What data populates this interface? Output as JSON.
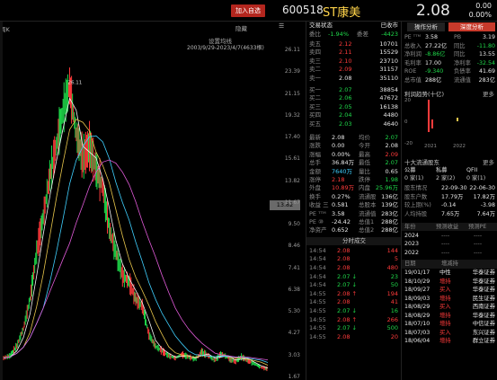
{
  "header": {
    "add_button": "加入自选",
    "code": "600518",
    "name": "ST康美",
    "price": "2.08",
    "change": "0.00",
    "change_pct": "0.00%"
  },
  "chart_tabs": {
    "period": "周K",
    "indicator": "设置均线",
    "range": "2003/9/29-2023/4/7(4633根)",
    "hide": "隐藏"
  },
  "price_axis": [
    "26.11",
    "23.39",
    "21.15",
    "19.32",
    "17.40",
    "15.61",
    "13.82",
    "11.67",
    "9.50",
    "8.46",
    "7.41",
    "6.38",
    "5.30",
    "4.27",
    "3.03",
    "1.67"
  ],
  "peak_label": "26.11",
  "chart_data": {
    "type": "line",
    "title": "",
    "xlabel": "",
    "ylabel": "",
    "ylim": [
      1.67,
      26.11
    ],
    "grid": false,
    "series": [
      {
        "name": "",
        "values": [
          3.0,
          3.2,
          4.0,
          5.5,
          8.0,
          12.0,
          15.0,
          18.5,
          21.0,
          24.0,
          26.11,
          22.0,
          20.0,
          21.0,
          19.0,
          17.5,
          14.0,
          12.0,
          10.0,
          9.5,
          8.0,
          7.4,
          5.0,
          4.0,
          3.6,
          3.2,
          3.0,
          3.3,
          3.1,
          2.9,
          3.5,
          3.2,
          2.8,
          3.4,
          3.0,
          2.7,
          3.1,
          2.8,
          2.5,
          2.2,
          2.08
        ]
      }
    ]
  },
  "ob": {
    "title": "交易状态",
    "status": "已收市",
    "weibi": "委比",
    "weibi_val": "-1.94%",
    "weicha": "委差",
    "weicha_val": "-4423",
    "asks": [
      {
        "l": "卖五",
        "p": "2.12",
        "v": "10701"
      },
      {
        "l": "卖四",
        "p": "2.11",
        "v": "15529"
      },
      {
        "l": "卖三",
        "p": "2.10",
        "v": "23710"
      },
      {
        "l": "卖二",
        "p": "2.09",
        "v": "31157"
      },
      {
        "l": "卖一",
        "p": "2.08",
        "v": "35110"
      }
    ],
    "bids": [
      {
        "l": "买一",
        "p": "2.07",
        "v": "38854"
      },
      {
        "l": "买二",
        "p": "2.06",
        "v": "47672"
      },
      {
        "l": "买三",
        "p": "2.05",
        "v": "16138"
      },
      {
        "l": "买四",
        "p": "2.04",
        "v": "4480"
      },
      {
        "l": "买五",
        "p": "2.03",
        "v": "4640"
      }
    ],
    "stats": [
      {
        "a": "最新",
        "b": "2.08",
        "c": "均价",
        "d": "2.07",
        "bc": "white",
        "dc": "green"
      },
      {
        "a": "涨跌",
        "b": "0.00",
        "c": "今开",
        "d": "2.08",
        "bc": "white",
        "dc": "white"
      },
      {
        "a": "涨幅",
        "b": "0.00%",
        "c": "最高",
        "d": "2.09",
        "bc": "white",
        "dc": "red"
      },
      {
        "a": "总手",
        "b": "36.84万",
        "c": "最低",
        "d": "2.07",
        "bc": "white",
        "dc": "green"
      },
      {
        "a": "金额",
        "b": "7640万",
        "c": "量比",
        "d": "0.65",
        "bc": "cyan",
        "dc": "white"
      },
      {
        "a": "涨停",
        "b": "2.18",
        "c": "跌停",
        "d": "1.98",
        "bc": "red",
        "dc": "green"
      },
      {
        "a": "外盘",
        "b": "10.89万",
        "c": "内盘",
        "d": "25.96万",
        "bc": "red",
        "dc": "green"
      },
      {
        "a": "换手",
        "b": "0.27%",
        "c": "流通股",
        "d": "136亿",
        "bc": "white",
        "dc": "white"
      },
      {
        "a": "收益 三",
        "b": "0.581",
        "c": "总股本",
        "d": "139亿",
        "bc": "white",
        "dc": "white"
      },
      {
        "a": "PE ᵀᵀᴹ",
        "b": "3.58",
        "c": "流通值",
        "d": "283亿",
        "bc": "white",
        "dc": "white"
      },
      {
        "a": "PE ⑩",
        "b": "-24.42",
        "c": "总值1",
        "d": "288亿",
        "bc": "white",
        "dc": "white"
      },
      {
        "a": "净资产",
        "b": "0.652",
        "c": "总值2",
        "d": "288亿",
        "bc": "white",
        "dc": "white"
      }
    ],
    "ticks_title": "分时成交",
    "ticks": [
      {
        "t": "14:54",
        "p": "2.08",
        "v": "144",
        "vc": "red"
      },
      {
        "t": "14:54",
        "p": "2.08",
        "v": "5",
        "vc": "red"
      },
      {
        "t": "14:54",
        "p": "2.08",
        "v": "480",
        "vc": "red"
      },
      {
        "t": "14:54",
        "p": "2.07 ↓",
        "v": "23",
        "vc": "green"
      },
      {
        "t": "14:54",
        "p": "2.07 ↓",
        "v": "50",
        "vc": "green"
      },
      {
        "t": "14:55",
        "p": "2.08 ↑",
        "v": "194",
        "vc": "red"
      },
      {
        "t": "14:55",
        "p": "2.08",
        "v": "41",
        "vc": "red"
      },
      {
        "t": "14:55",
        "p": "2.07 ↓",
        "v": "16",
        "vc": "green"
      },
      {
        "t": "14:55",
        "p": "2.08 ↑",
        "v": "266",
        "vc": "red"
      },
      {
        "t": "14:55",
        "p": "2.07 ↓",
        "v": "500",
        "vc": "green"
      },
      {
        "t": "14:55",
        "p": "2.08",
        "v": "20",
        "vc": "red"
      }
    ]
  },
  "rp": {
    "tab1": "操作分析",
    "tab2": "深度分析",
    "fund": [
      {
        "a": "PE ᵀᵀᴹ",
        "b": "3.58",
        "c": "PB",
        "d": "3.19"
      },
      {
        "a": "总收入",
        "b": "27.22亿",
        "c": "同比",
        "d": "-11.80",
        "dc": "green"
      },
      {
        "a": "净利润",
        "b": "-8.86亿",
        "c": "同比",
        "d": "13.55",
        "bc": "green"
      },
      {
        "a": "毛利率",
        "b": "17.00",
        "c": "净利率",
        "d": "-32.54",
        "dc": "green"
      },
      {
        "a": "ROE",
        "b": "-9.340",
        "c": "负债率",
        "d": "41.69",
        "bc": "green"
      },
      {
        "a": "总市值",
        "b": "288亿",
        "c": "流通值",
        "d": "283亿"
      }
    ],
    "profit_title": "利润趋势(十亿)",
    "more": "更多",
    "profit_axis": [
      "20",
      "0",
      "-20"
    ],
    "profit_years": [
      "2021",
      "2022"
    ],
    "shareholder_title": "十大流通股东",
    "sh_pills": [
      "公募",
      "私募",
      "QFII"
    ],
    "sh_counts": [
      "0 家(1)",
      "2 家(2)",
      "0 家(1)"
    ],
    "sh_rows": [
      {
        "a": "股东情况",
        "b": "22-09-30",
        "c": "22-06-30"
      },
      {
        "a": "股东户数",
        "b": "17.79万",
        "c": "17.82万"
      },
      {
        "a": "较上期(%)",
        "b": "-0.14",
        "c": "-3.98"
      },
      {
        "a": "人均持股",
        "b": "7.65万",
        "c": "7.64万"
      }
    ],
    "forecast_head": [
      "年份",
      "预测收益",
      "预测PE"
    ],
    "forecast_rows": [
      [
        "2024",
        "----",
        "----"
      ],
      [
        "2023",
        "----",
        "----"
      ],
      [
        "2022",
        "----",
        "----"
      ]
    ],
    "insider_head": [
      "日期",
      "增减持"
    ],
    "insider_rows": [
      [
        "19/01/17",
        "中性",
        "华泰证券"
      ],
      [
        "18/10/29",
        "增持",
        "华泰证券"
      ],
      [
        "18/09/27",
        "买入",
        "华泰证券"
      ],
      [
        "18/09/03",
        "增持",
        "民生证券"
      ],
      [
        "18/08/29",
        "买入",
        "西南证券"
      ],
      [
        "18/08/29",
        "增持",
        "华泰证券"
      ],
      [
        "18/07/10",
        "增持",
        "中信证券"
      ],
      [
        "18/07/03",
        "买入",
        "东兴证券"
      ],
      [
        "18/06/04",
        "增持",
        "群立证券"
      ]
    ]
  }
}
